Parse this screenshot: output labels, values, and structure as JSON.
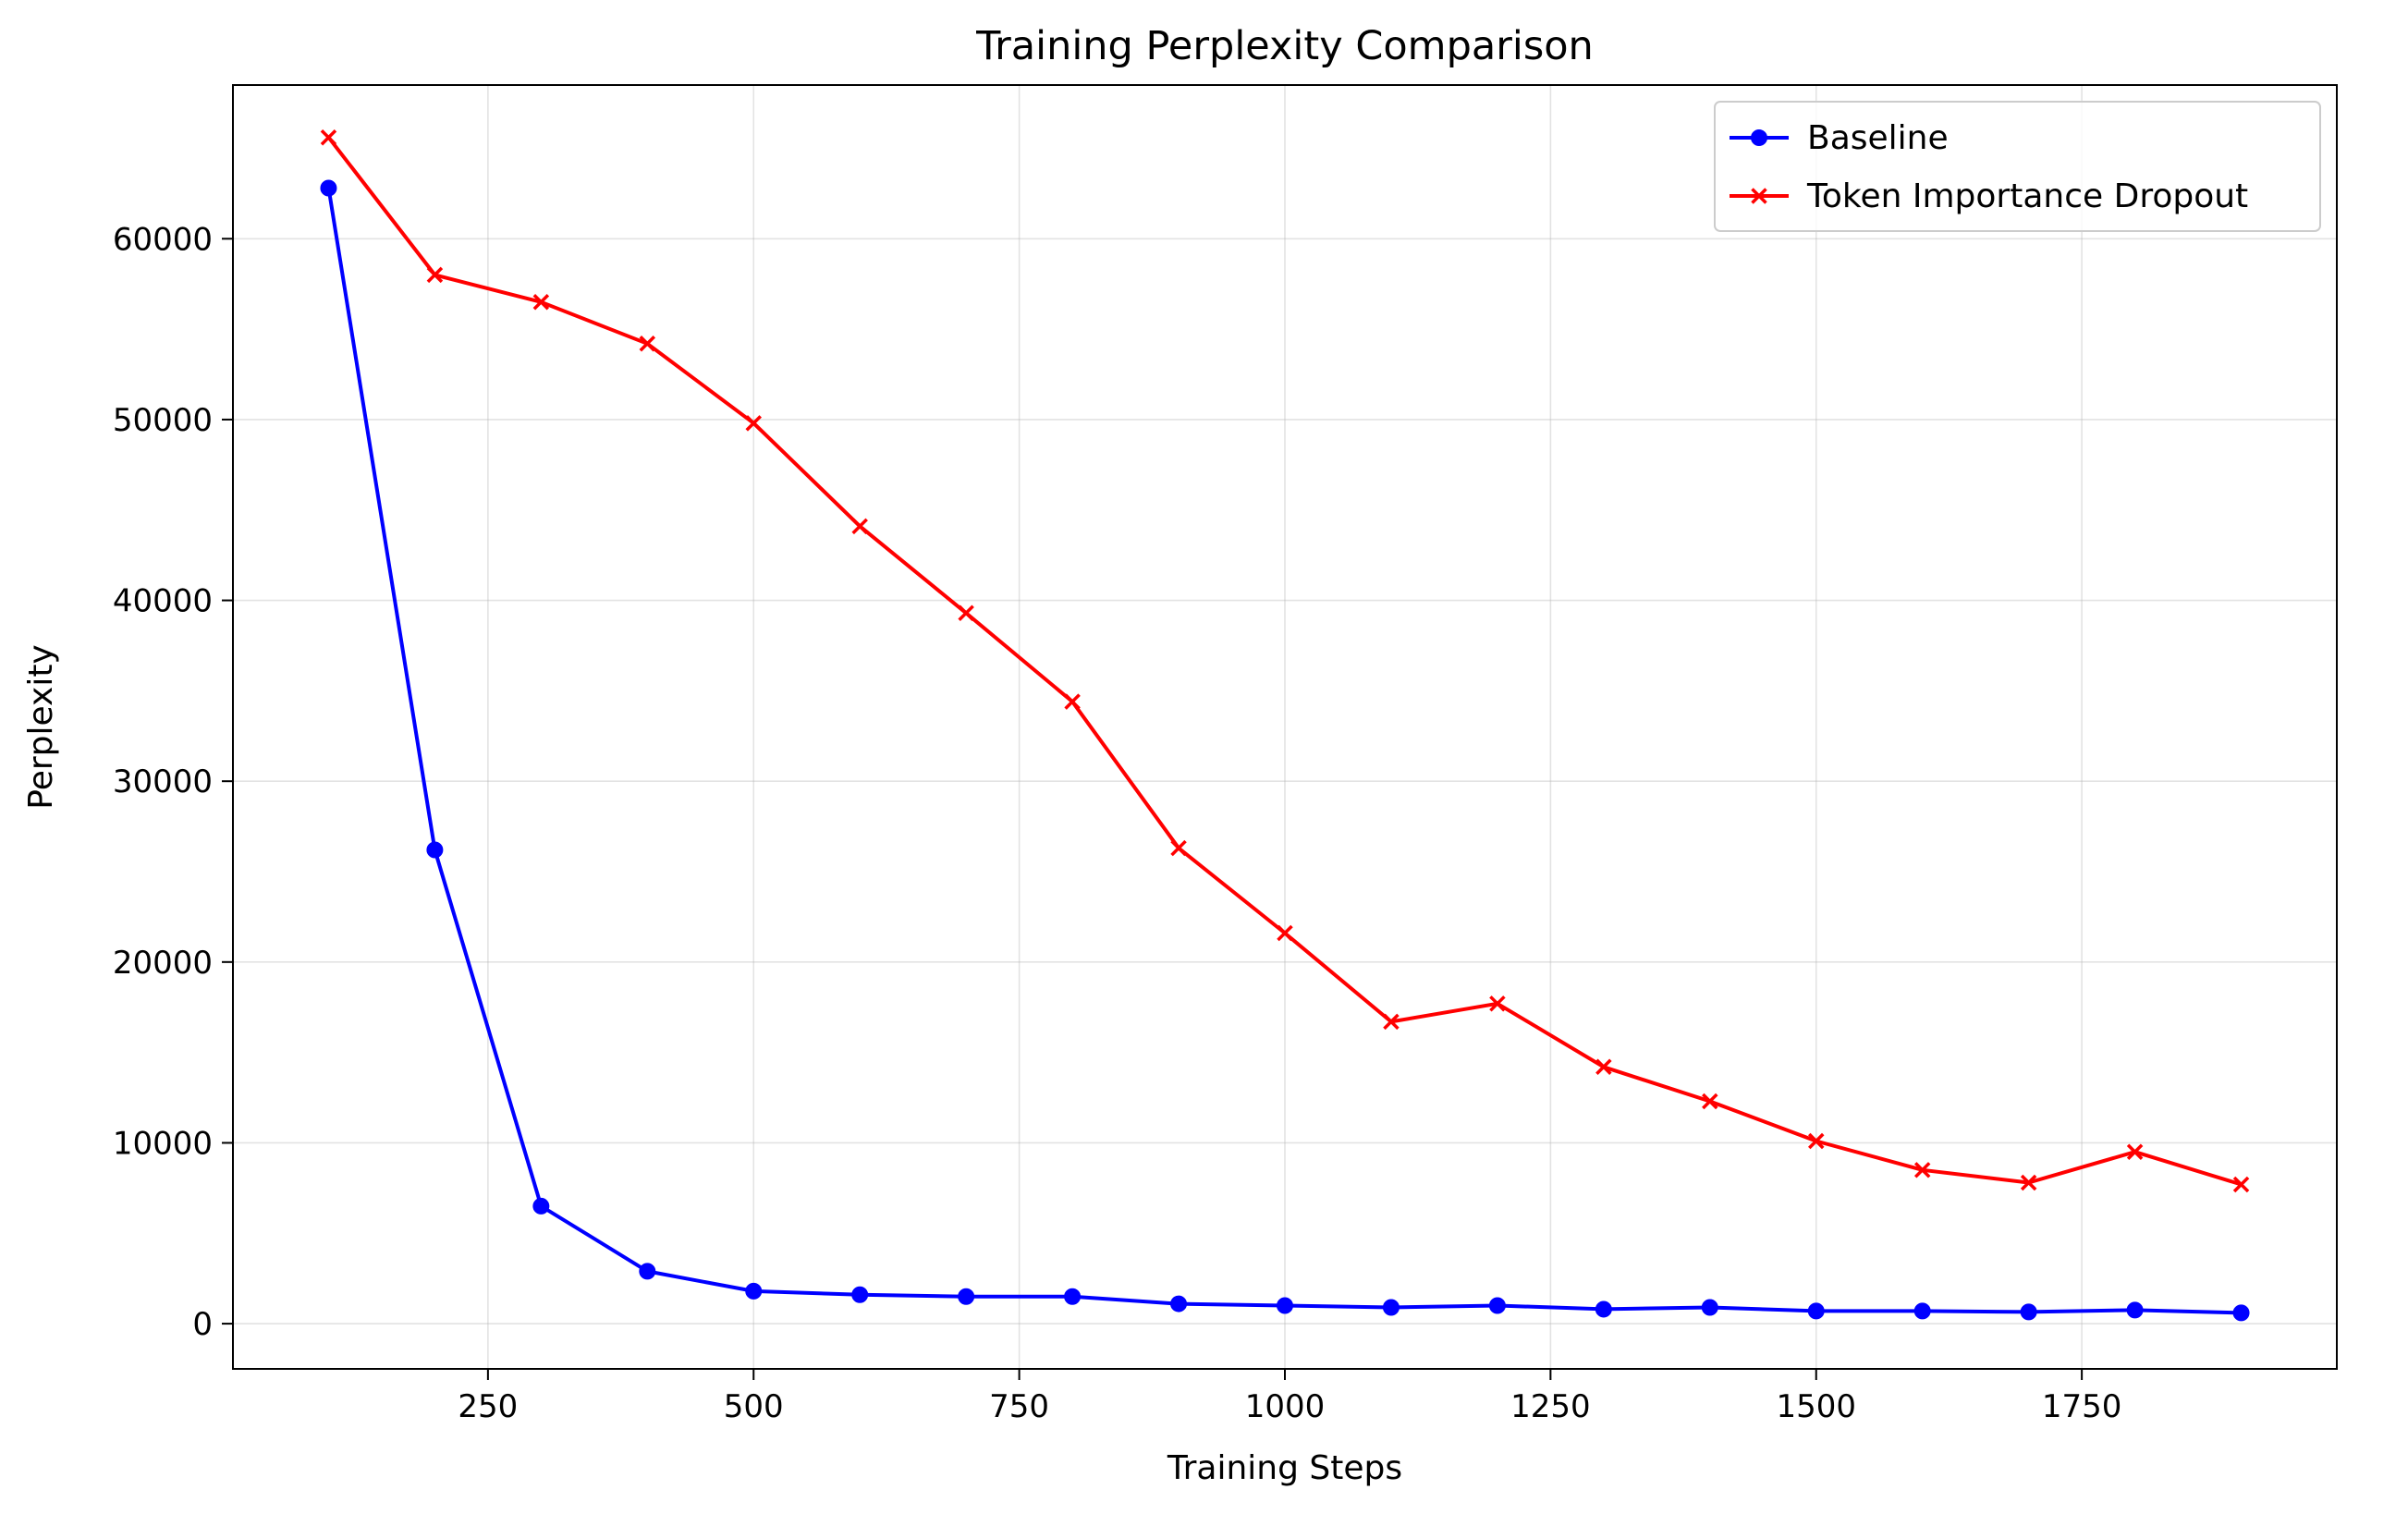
{
  "chart_data": {
    "type": "line",
    "title": "Training Perplexity Comparison",
    "xlabel": "Training Steps",
    "ylabel": "Perplexity",
    "xlim": [
      10,
      1990
    ],
    "ylim": [
      -2500,
      68500
    ],
    "xticks": [
      250,
      500,
      750,
      1000,
      1250,
      1500,
      1750
    ],
    "yticks": [
      0,
      10000,
      20000,
      30000,
      40000,
      50000,
      60000
    ],
    "grid": true,
    "legend_position": "top-right",
    "x": [
      100,
      200,
      300,
      400,
      500,
      600,
      700,
      800,
      900,
      1000,
      1100,
      1200,
      1300,
      1400,
      1500,
      1600,
      1700,
      1800,
      1900
    ],
    "series": [
      {
        "name": "Baseline",
        "color": "#0000ff",
        "marker": "circle",
        "values": [
          62800,
          26200,
          6500,
          2900,
          1800,
          1600,
          1500,
          1500,
          1100,
          1000,
          900,
          1000,
          800,
          900,
          700,
          700,
          650,
          750,
          600
        ]
      },
      {
        "name": "Token Importance Dropout",
        "color": "#ff0000",
        "marker": "x",
        "values": [
          65600,
          58000,
          56500,
          54200,
          49800,
          44100,
          39300,
          34400,
          26300,
          21600,
          16700,
          17700,
          14200,
          12300,
          10100,
          8500,
          7800,
          9500,
          7700
        ]
      }
    ]
  }
}
